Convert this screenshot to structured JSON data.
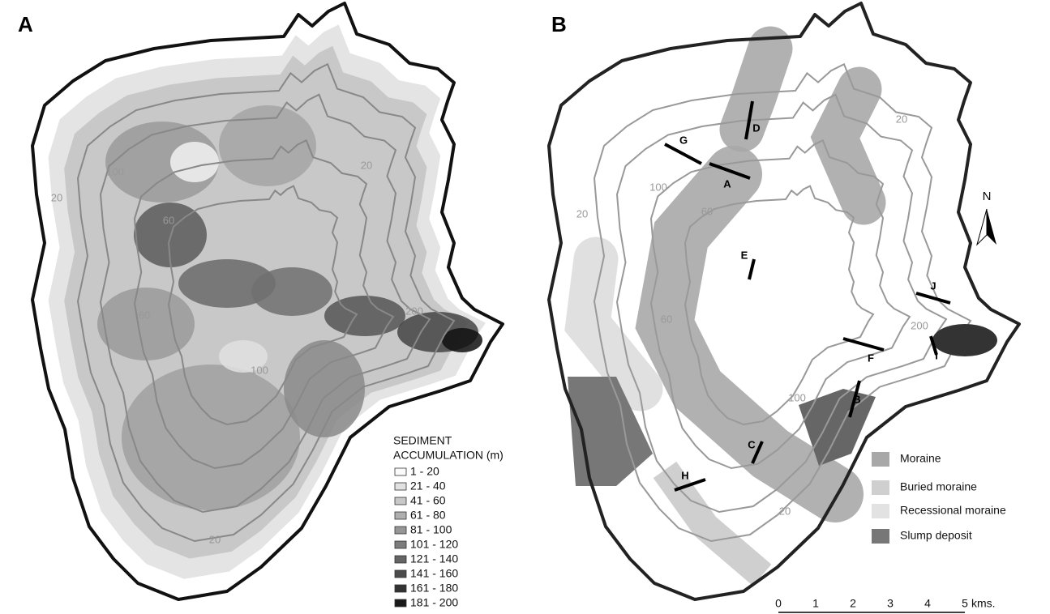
{
  "panels": [
    {
      "label": "A",
      "contour_labels": [
        "20",
        "100",
        "60",
        "60",
        "100",
        "200",
        "20",
        "20"
      ],
      "legend": {
        "title_lines": [
          "SEDIMENT",
          "ACCUMULATION (m)"
        ],
        "classes": [
          "1 - 20",
          "21 - 40",
          "41 - 60",
          "61 - 80",
          "81 - 100",
          "101 - 120",
          "121 - 140",
          "141 - 160",
          "161 - 180",
          "181 - 200"
        ]
      }
    },
    {
      "label": "B",
      "contour_labels": [
        "20",
        "100",
        "60",
        "60",
        "200",
        "100",
        "20",
        "20"
      ],
      "sections": [
        "G",
        "A",
        "D",
        "E",
        "J",
        "F",
        "I",
        "B",
        "C",
        "H"
      ],
      "north": "N",
      "legend": {
        "items": [
          "Moraine",
          "Buried moraine",
          "Recessional moraine",
          "Slump deposit"
        ]
      },
      "scale": {
        "ticks": [
          "0",
          "1",
          "2",
          "3",
          "4",
          "5"
        ],
        "unit": "kms."
      }
    }
  ]
}
